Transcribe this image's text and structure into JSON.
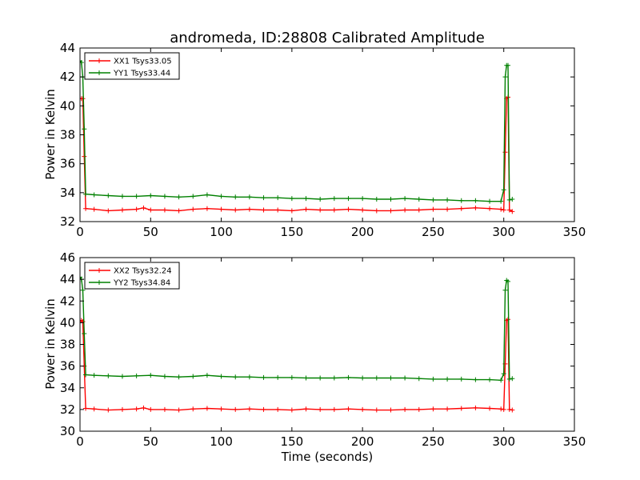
{
  "chart_data": [
    {
      "type": "line",
      "title": "andromeda, ID:28808 Calibrated Amplitude",
      "xlabel": "",
      "ylabel": "Power in Kelvin",
      "xlim": [
        0,
        350
      ],
      "ylim": [
        32,
        44
      ],
      "xticks": [
        0,
        50,
        100,
        150,
        200,
        250,
        300,
        350
      ],
      "yticks": [
        32,
        34,
        36,
        38,
        40,
        42,
        44
      ],
      "legend_position": "top-left",
      "series": [
        {
          "name": "XX1 Tsys33.05",
          "color": "#ff0000",
          "x": [
            0,
            1,
            2,
            3,
            4,
            10,
            20,
            30,
            40,
            45,
            50,
            60,
            70,
            80,
            90,
            100,
            110,
            120,
            130,
            140,
            150,
            160,
            170,
            180,
            190,
            200,
            210,
            220,
            230,
            240,
            250,
            260,
            270,
            280,
            290,
            298,
            300,
            301,
            302,
            303,
            304,
            306
          ],
          "y": [
            40.5,
            40.5,
            40.5,
            36.5,
            32.9,
            32.85,
            32.75,
            32.8,
            32.85,
            32.95,
            32.8,
            32.8,
            32.75,
            32.85,
            32.9,
            32.85,
            32.8,
            32.85,
            32.8,
            32.8,
            32.75,
            32.85,
            32.8,
            32.8,
            32.85,
            32.8,
            32.75,
            32.75,
            32.8,
            32.8,
            32.85,
            32.85,
            32.9,
            32.95,
            32.9,
            32.85,
            32.8,
            36.8,
            40.5,
            40.6,
            32.8,
            32.7
          ]
        },
        {
          "name": "YY1 Tsys33.44",
          "color": "#008000",
          "x": [
            0,
            1,
            2,
            3,
            4,
            10,
            20,
            30,
            40,
            50,
            60,
            70,
            80,
            90,
            100,
            110,
            120,
            130,
            140,
            150,
            160,
            170,
            180,
            190,
            200,
            210,
            220,
            230,
            240,
            250,
            260,
            270,
            280,
            290,
            298,
            300,
            301,
            302,
            303,
            304,
            306
          ],
          "y": [
            43.1,
            43.0,
            42.0,
            38.4,
            33.9,
            33.85,
            33.8,
            33.75,
            33.75,
            33.8,
            33.75,
            33.7,
            33.75,
            33.85,
            33.75,
            33.7,
            33.7,
            33.65,
            33.65,
            33.6,
            33.6,
            33.55,
            33.6,
            33.6,
            33.6,
            33.55,
            33.55,
            33.6,
            33.55,
            33.5,
            33.5,
            33.45,
            33.45,
            33.4,
            33.4,
            34.2,
            42.0,
            42.8,
            42.8,
            33.5,
            33.55
          ]
        }
      ]
    },
    {
      "type": "line",
      "title": "",
      "xlabel": "Time (seconds)",
      "ylabel": "Power in Kelvin",
      "xlim": [
        0,
        350
      ],
      "ylim": [
        30,
        46
      ],
      "xticks": [
        0,
        50,
        100,
        150,
        200,
        250,
        300,
        350
      ],
      "yticks": [
        30,
        32,
        34,
        36,
        38,
        40,
        42,
        44,
        46
      ],
      "legend_position": "top-left",
      "series": [
        {
          "name": "XX2 Tsys32.24",
          "color": "#ff0000",
          "x": [
            0,
            1,
            2,
            3,
            4,
            10,
            20,
            30,
            40,
            45,
            50,
            60,
            70,
            80,
            90,
            100,
            110,
            120,
            130,
            140,
            150,
            160,
            170,
            180,
            190,
            200,
            210,
            220,
            230,
            240,
            250,
            260,
            270,
            280,
            290,
            298,
            300,
            301,
            302,
            303,
            304,
            306
          ],
          "y": [
            40.2,
            40.2,
            40.1,
            36.0,
            32.1,
            32.05,
            31.95,
            32.0,
            32.05,
            32.15,
            32.0,
            32.0,
            31.95,
            32.05,
            32.1,
            32.05,
            32.0,
            32.05,
            32.0,
            32.0,
            31.95,
            32.05,
            32.0,
            32.0,
            32.05,
            32.0,
            31.95,
            31.95,
            32.0,
            32.0,
            32.05,
            32.05,
            32.1,
            32.15,
            32.1,
            32.05,
            32.0,
            36.2,
            40.2,
            40.3,
            32.0,
            31.95
          ]
        },
        {
          "name": "YY2 Tsys34.84",
          "color": "#008000",
          "x": [
            0,
            1,
            2,
            3,
            4,
            10,
            20,
            30,
            40,
            50,
            60,
            70,
            80,
            90,
            100,
            110,
            120,
            130,
            140,
            150,
            160,
            170,
            180,
            190,
            200,
            210,
            220,
            230,
            240,
            250,
            260,
            270,
            280,
            290,
            298,
            300,
            301,
            302,
            303,
            304,
            306
          ],
          "y": [
            44.2,
            44.0,
            43.0,
            39.0,
            35.2,
            35.15,
            35.1,
            35.05,
            35.1,
            35.15,
            35.05,
            35.0,
            35.05,
            35.15,
            35.05,
            35.0,
            35.0,
            34.95,
            34.95,
            34.95,
            34.9,
            34.9,
            34.9,
            34.95,
            34.9,
            34.9,
            34.9,
            34.9,
            34.85,
            34.8,
            34.8,
            34.8,
            34.75,
            34.75,
            34.7,
            35.3,
            43.0,
            43.9,
            43.8,
            34.8,
            34.85
          ]
        }
      ]
    }
  ]
}
